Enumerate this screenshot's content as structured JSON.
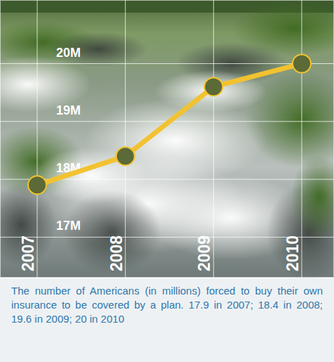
{
  "chart_data": {
    "type": "line",
    "title": "The number of Americans (in millions) forced to buy their own insurance to be covered by a plan. 17.9 in 2007; 18.4 in 2008; 19.6 in 2009; 20 in 2010",
    "categories": [
      "2007",
      "2008",
      "2009",
      "2010"
    ],
    "values": [
      17.9,
      18.4,
      19.6,
      20
    ],
    "color": "#f2c230",
    "marker": "circle",
    "ylim": [
      16.3,
      21.1
    ],
    "yticks": [
      {
        "value": 17,
        "label": "17M"
      },
      {
        "value": 18,
        "label": "18M"
      },
      {
        "value": 19,
        "label": "19M"
      },
      {
        "value": 20,
        "label": "20M"
      }
    ],
    "grid": true
  }
}
